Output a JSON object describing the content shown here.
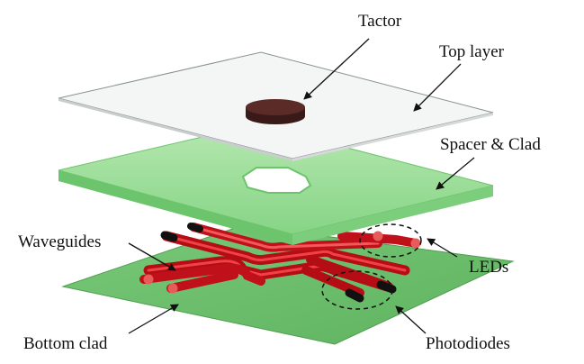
{
  "labels": {
    "tactor": "Tactor",
    "top_layer": "Top layer",
    "spacer_clad": "Spacer & Clad",
    "waveguides": "Waveguides",
    "leds": "LEDs",
    "bottom_clad": "Bottom clad",
    "photodiodes": "Photodiodes"
  },
  "colors": {
    "top_layer_fill": "#f4f6f6",
    "top_layer_edge": "#8a9090",
    "spacer_fill": "#86d486",
    "spacer_edge": "#6cc46c",
    "bottom_clad_fill": "#66bb66",
    "waveguide": "#d8141e",
    "waveguide_highlight": "#ff6a6a",
    "tactor": "#4a2320",
    "component_tip": "#111111",
    "dashed_outline": "#111111"
  }
}
